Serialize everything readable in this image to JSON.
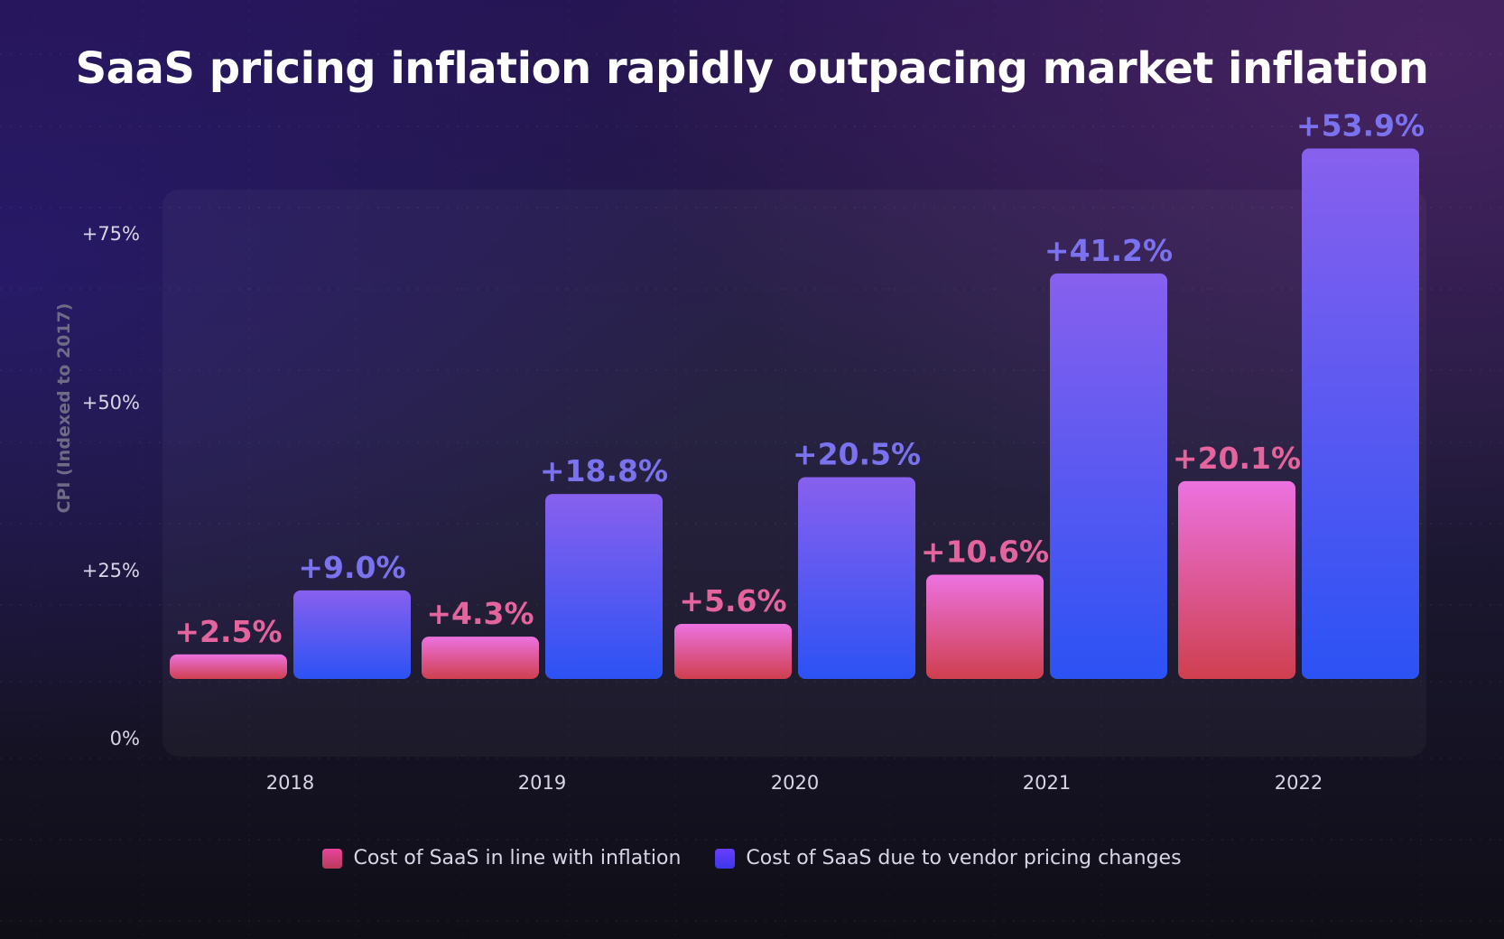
{
  "chart_data": {
    "type": "bar",
    "title": "SaaS pricing inflation rapidly outpacing market inflation",
    "ylabel": "CPI (Indexed to 2017)",
    "xlabel": "",
    "categories": [
      "2018",
      "2019",
      "2020",
      "2021",
      "2022"
    ],
    "yticks": [
      "0%",
      "+25%",
      "+50%",
      "+75%"
    ],
    "ylim": [
      0,
      75
    ],
    "grid": true,
    "legend_position": "bottom",
    "series": [
      {
        "name": "Cost of SaaS in line with inflation",
        "values": [
          2.5,
          4.3,
          5.6,
          10.6,
          20.1
        ],
        "labels": [
          "+2.5%",
          "+4.3%",
          "+5.6%",
          "+10.6%",
          "+20.1%"
        ],
        "color_top": "#ec72e0",
        "color_bottom": "#cf3f4e",
        "label_color": "#e4649e"
      },
      {
        "name": "Cost of SaaS due to vendor pricing changes",
        "values": [
          9.0,
          18.8,
          20.5,
          41.2,
          53.9
        ],
        "labels": [
          "+9.0%",
          "+18.8%",
          "+20.5%",
          "+41.2%",
          "+53.9%"
        ],
        "color_top": "#8860ee",
        "color_bottom": "#2c52f4",
        "label_color": "#7a72ee"
      }
    ]
  }
}
